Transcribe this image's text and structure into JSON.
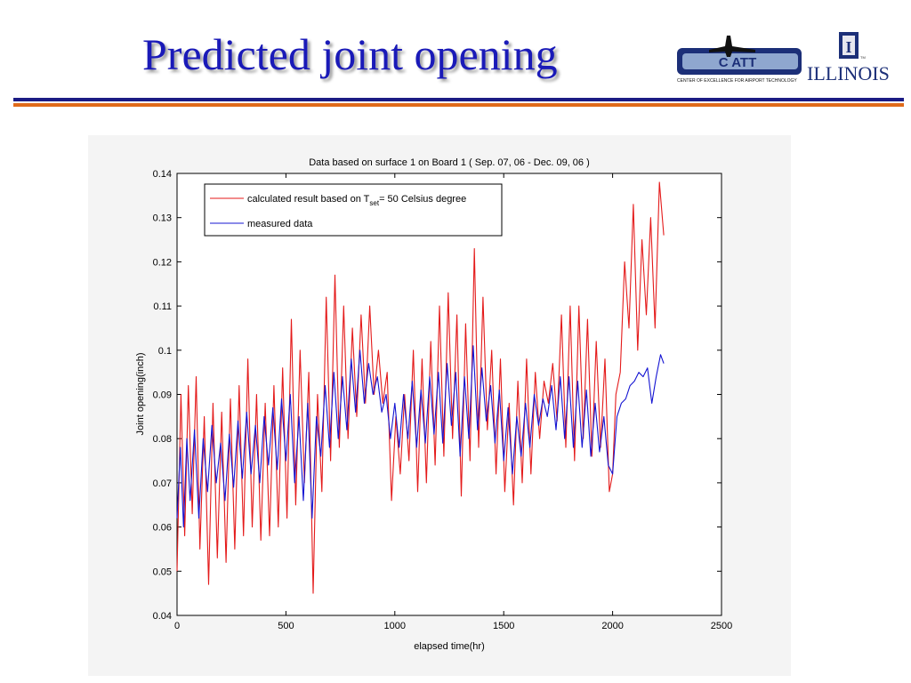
{
  "slide": {
    "title": "Predicted joint opening",
    "logo_text": "ILLINOIS",
    "logo_subtext": "CENTER OF EXCELLENCE FOR AIRPORT TECHNOLOGY",
    "logo_mark": "C ATT",
    "logo_tm": "TM",
    "logo_shield": "I",
    "colors": {
      "title": "#1a1ab8",
      "rule_blue": "#1b1b84",
      "rule_orange": "#e06a1a"
    }
  },
  "chart_data": {
    "type": "line",
    "title": "Data based on surface 1 on Board 1 ( Sep. 07, 06 - Dec. 09, 06 )",
    "xlabel": "elapsed time(hr)",
    "ylabel": "Joint opening(inch)",
    "xlim": [
      0,
      2500
    ],
    "ylim": [
      0.04,
      0.14
    ],
    "xticks": [
      0,
      500,
      1000,
      1500,
      2000,
      2500
    ],
    "xtick_labels": [
      "0",
      "500",
      "1000",
      "1500",
      "2000",
      "2500"
    ],
    "yticks": [
      0.04,
      0.05,
      0.06,
      0.07,
      0.08,
      0.09,
      0.1,
      0.11,
      0.12,
      0.13,
      0.14
    ],
    "ytick_labels": [
      "0.04",
      "0.05",
      "0.06",
      "0.07",
      "0.08",
      "0.09",
      "0.1",
      "0.11",
      "0.12",
      "0.13",
      "0.14"
    ],
    "grid": false,
    "legend_position": "top-left",
    "legend_entries": [
      {
        "prefix": "calculated result based on T",
        "subscript": "set",
        "suffix": "= 50 Celsius degree"
      },
      {
        "prefix": "measured data",
        "subscript": "",
        "suffix": ""
      }
    ],
    "series": [
      {
        "color": "#e41a1a",
        "x": [
          0,
          18,
          35,
          52,
          70,
          88,
          105,
          125,
          145,
          165,
          185,
          205,
          225,
          245,
          265,
          285,
          305,
          325,
          345,
          365,
          385,
          405,
          425,
          445,
          465,
          485,
          505,
          525,
          545,
          565,
          585,
          605,
          625,
          645,
          665,
          685,
          705,
          725,
          745,
          765,
          785,
          805,
          825,
          845,
          865,
          885,
          905,
          925,
          945,
          965,
          985,
          1005,
          1025,
          1045,
          1065,
          1085,
          1105,
          1125,
          1145,
          1165,
          1185,
          1205,
          1225,
          1245,
          1265,
          1285,
          1305,
          1325,
          1345,
          1365,
          1385,
          1405,
          1425,
          1445,
          1465,
          1485,
          1505,
          1525,
          1545,
          1565,
          1585,
          1605,
          1625,
          1645,
          1665,
          1685,
          1705,
          1725,
          1745,
          1765,
          1785,
          1805,
          1825,
          1845,
          1865,
          1885,
          1905,
          1925,
          1945,
          1965,
          1985,
          2000,
          2015,
          2035,
          2055,
          2075,
          2095,
          2115,
          2135,
          2155,
          2175,
          2195,
          2215,
          2235
        ],
        "y": [
          0.05,
          0.09,
          0.058,
          0.092,
          0.063,
          0.094,
          0.055,
          0.085,
          0.047,
          0.088,
          0.053,
          0.086,
          0.052,
          0.089,
          0.055,
          0.092,
          0.058,
          0.098,
          0.06,
          0.09,
          0.057,
          0.088,
          0.058,
          0.092,
          0.06,
          0.096,
          0.062,
          0.107,
          0.065,
          0.1,
          0.07,
          0.095,
          0.045,
          0.09,
          0.068,
          0.112,
          0.075,
          0.117,
          0.078,
          0.11,
          0.08,
          0.105,
          0.085,
          0.108,
          0.088,
          0.11,
          0.09,
          0.1,
          0.088,
          0.095,
          0.066,
          0.085,
          0.072,
          0.09,
          0.075,
          0.1,
          0.068,
          0.098,
          0.07,
          0.102,
          0.074,
          0.11,
          0.076,
          0.113,
          0.08,
          0.108,
          0.067,
          0.106,
          0.075,
          0.123,
          0.078,
          0.112,
          0.082,
          0.1,
          0.072,
          0.098,
          0.068,
          0.088,
          0.065,
          0.093,
          0.07,
          0.098,
          0.072,
          0.095,
          0.08,
          0.093,
          0.088,
          0.097,
          0.084,
          0.108,
          0.078,
          0.11,
          0.075,
          0.11,
          0.08,
          0.107,
          0.076,
          0.102,
          0.078,
          0.098,
          0.068,
          0.072,
          0.09,
          0.095,
          0.12,
          0.105,
          0.133,
          0.1,
          0.125,
          0.108,
          0.13,
          0.105,
          0.138,
          0.126
        ]
      },
      {
        "color": "#1414d2",
        "x": [
          0,
          15,
          30,
          45,
          60,
          80,
          100,
          120,
          140,
          160,
          180,
          200,
          220,
          240,
          260,
          280,
          300,
          320,
          340,
          360,
          380,
          400,
          420,
          440,
          460,
          480,
          500,
          520,
          540,
          560,
          580,
          600,
          620,
          640,
          660,
          680,
          700,
          720,
          740,
          760,
          780,
          800,
          820,
          840,
          860,
          880,
          900,
          920,
          940,
          960,
          980,
          1000,
          1020,
          1040,
          1060,
          1080,
          1100,
          1120,
          1140,
          1160,
          1180,
          1200,
          1220,
          1240,
          1260,
          1280,
          1300,
          1320,
          1340,
          1360,
          1380,
          1400,
          1420,
          1440,
          1460,
          1480,
          1500,
          1520,
          1540,
          1560,
          1580,
          1600,
          1620,
          1640,
          1660,
          1680,
          1700,
          1720,
          1740,
          1760,
          1780,
          1800,
          1820,
          1840,
          1860,
          1880,
          1900,
          1920,
          1940,
          1960,
          1980,
          2000,
          2020,
          2040,
          2060,
          2080,
          2100,
          2120,
          2140,
          2160,
          2180,
          2200,
          2220,
          2235
        ],
        "y": [
          0.062,
          0.078,
          0.06,
          0.08,
          0.066,
          0.082,
          0.062,
          0.08,
          0.068,
          0.083,
          0.07,
          0.079,
          0.066,
          0.081,
          0.069,
          0.084,
          0.071,
          0.086,
          0.072,
          0.083,
          0.07,
          0.085,
          0.074,
          0.087,
          0.073,
          0.089,
          0.075,
          0.09,
          0.07,
          0.085,
          0.066,
          0.088,
          0.062,
          0.085,
          0.076,
          0.092,
          0.078,
          0.095,
          0.08,
          0.094,
          0.082,
          0.098,
          0.086,
          0.1,
          0.088,
          0.097,
          0.09,
          0.094,
          0.086,
          0.09,
          0.08,
          0.088,
          0.078,
          0.09,
          0.08,
          0.093,
          0.078,
          0.091,
          0.079,
          0.094,
          0.081,
          0.095,
          0.079,
          0.097,
          0.083,
          0.095,
          0.076,
          0.094,
          0.08,
          0.101,
          0.082,
          0.096,
          0.084,
          0.092,
          0.079,
          0.091,
          0.075,
          0.087,
          0.072,
          0.085,
          0.076,
          0.088,
          0.078,
          0.09,
          0.083,
          0.089,
          0.085,
          0.092,
          0.082,
          0.094,
          0.08,
          0.094,
          0.078,
          0.093,
          0.078,
          0.091,
          0.076,
          0.088,
          0.077,
          0.085,
          0.074,
          0.072,
          0.085,
          0.088,
          0.089,
          0.092,
          0.093,
          0.095,
          0.094,
          0.096,
          0.088,
          0.094,
          0.099,
          0.097
        ]
      }
    ]
  }
}
